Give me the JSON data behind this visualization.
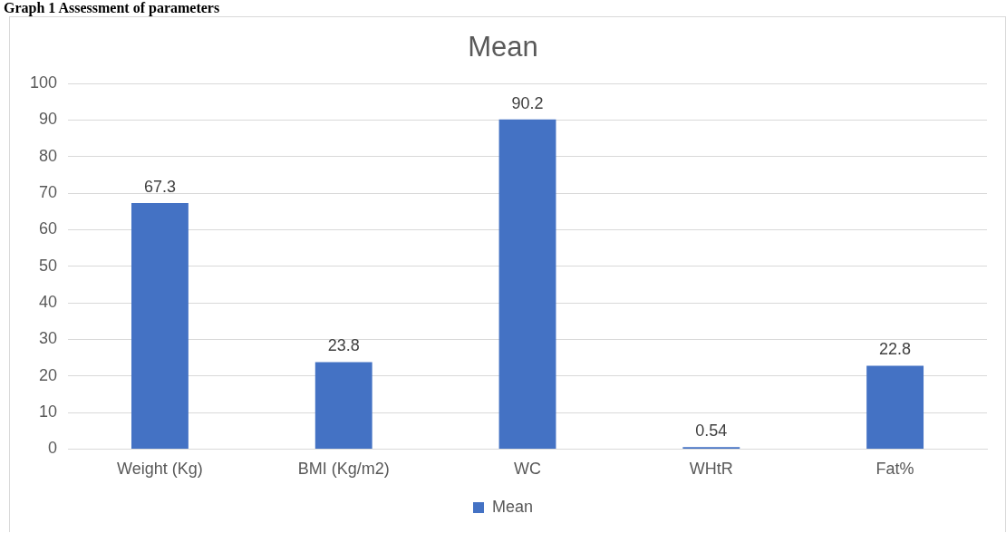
{
  "chart_data": {
    "type": "bar",
    "title": "Mean",
    "annotations": [
      "Graph 1 Assessment of parameters"
    ],
    "categories": [
      "Weight (Kg)",
      "BMI (Kg/m2)",
      "WC",
      "WHtR",
      "Fat%"
    ],
    "series": [
      {
        "name": "Mean",
        "color": "#4472c4",
        "values": [
          67.3,
          23.8,
          90.2,
          0.54,
          22.8
        ]
      }
    ],
    "ylim": [
      0,
      100
    ],
    "yticks": [
      0,
      10,
      20,
      30,
      40,
      50,
      60,
      70,
      80,
      90,
      100
    ],
    "grid": "y",
    "legend": "bottom",
    "data_labels": true
  }
}
